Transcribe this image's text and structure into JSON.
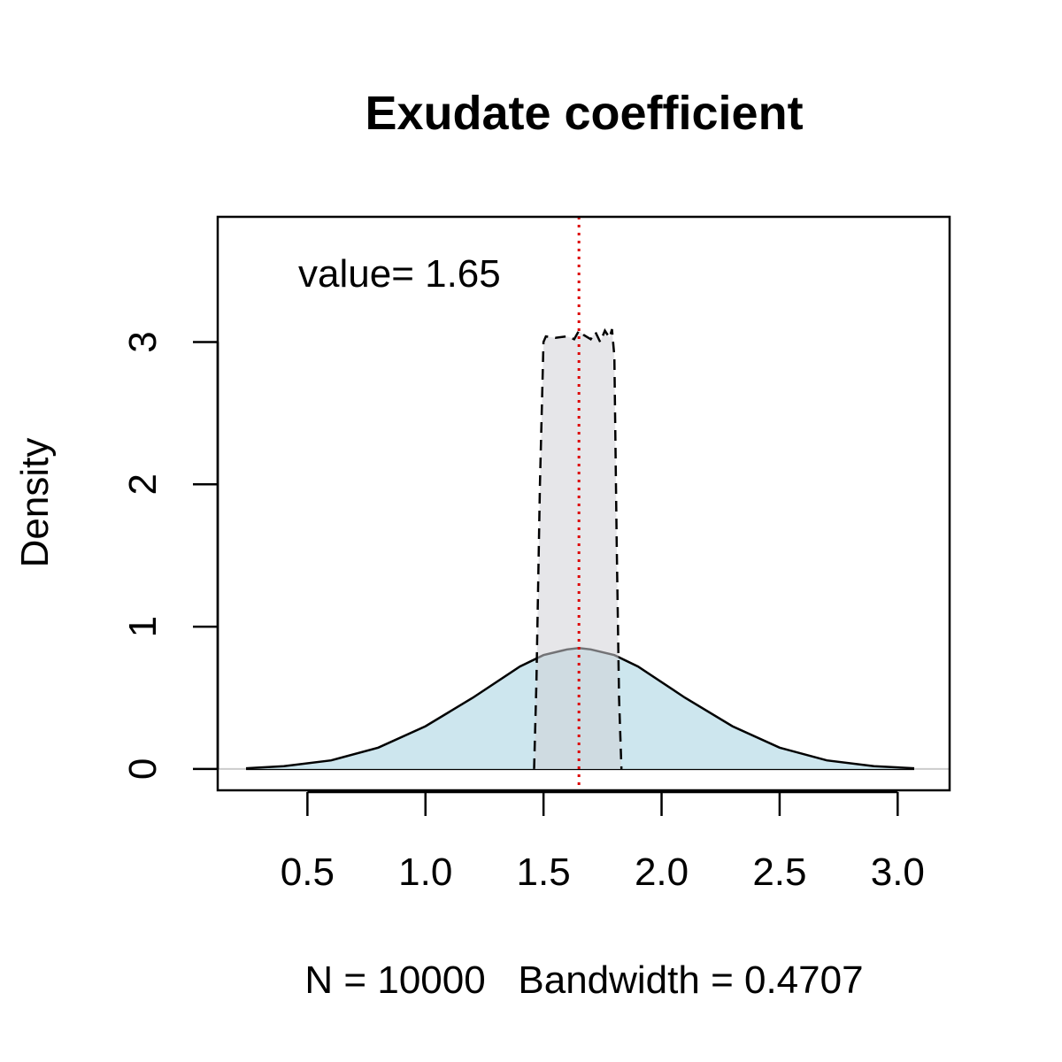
{
  "chart_data": {
    "type": "area",
    "title": "Exudate coefficient",
    "xlabel": "N = 10000   Bandwidth = 0.4707",
    "ylabel": "Density",
    "annotation": "value= 1.65",
    "xlim": [
      0.12,
      3.22
    ],
    "ylim": [
      -0.15,
      3.88
    ],
    "x_ticks": [
      0.5,
      1.0,
      1.5,
      2.0,
      2.5,
      3.0
    ],
    "x_tick_labels": [
      "0.5",
      "1.0",
      "1.5",
      "2.0",
      "2.5",
      "3.0"
    ],
    "y_ticks": [
      0,
      1,
      2,
      3
    ],
    "y_tick_labels": [
      "0",
      "1",
      "2",
      "3"
    ],
    "reference_line": {
      "x": 1.65,
      "color": "#dd0000",
      "style": "dotted"
    },
    "grid": false,
    "series": [
      {
        "style": "solid",
        "fill": "#cde6ee",
        "stroke": "#000000",
        "x": [
          0.24,
          0.4,
          0.6,
          0.8,
          1.0,
          1.2,
          1.4,
          1.5,
          1.6,
          1.65,
          1.7,
          1.8,
          1.9,
          2.1,
          2.3,
          2.5,
          2.7,
          2.9,
          3.07
        ],
        "y": [
          0.005,
          0.02,
          0.06,
          0.15,
          0.3,
          0.5,
          0.72,
          0.8,
          0.84,
          0.85,
          0.84,
          0.8,
          0.72,
          0.5,
          0.3,
          0.15,
          0.06,
          0.02,
          0.005
        ]
      },
      {
        "style": "dashed",
        "fill": "rgba(210,210,215,0.55)",
        "stroke": "#000000",
        "x": [
          1.46,
          1.47,
          1.485,
          1.5,
          1.51,
          1.55,
          1.6,
          1.63,
          1.65,
          1.67,
          1.7,
          1.72,
          1.74,
          1.76,
          1.78,
          1.79,
          1.8,
          1.81,
          1.82,
          1.83
        ],
        "y": [
          0.0,
          0.6,
          2.0,
          3.0,
          3.04,
          3.03,
          3.04,
          3.02,
          3.08,
          3.05,
          3.02,
          3.07,
          3.0,
          3.08,
          3.03,
          3.09,
          2.9,
          1.6,
          0.5,
          0.0
        ]
      }
    ]
  }
}
